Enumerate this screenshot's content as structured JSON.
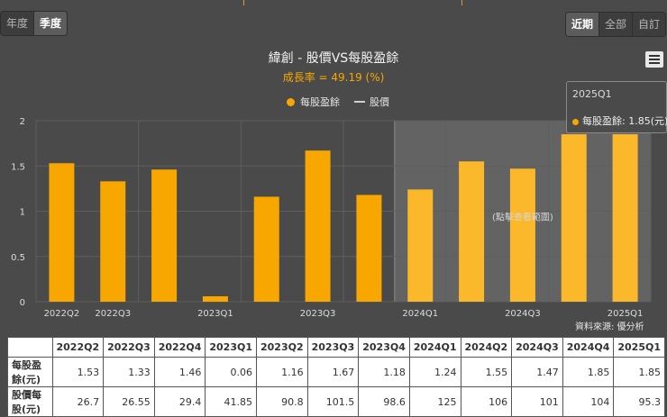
{
  "period_toggle": {
    "annual": "年度",
    "quarterly": "季度",
    "active": "quarterly"
  },
  "range_toggle": {
    "recent": "近期",
    "all": "全部",
    "custom": "自訂",
    "active": "recent"
  },
  "menu": {
    "icon": "hamburger-menu-icon"
  },
  "chart_data": {
    "type": "bar",
    "title": "緯創 - 股價VS每股盈餘",
    "subtitle": "成長率 = 49.19 (%)",
    "categories": [
      "2022Q2",
      "2022Q3",
      "2022Q4",
      "2023Q1",
      "2023Q2",
      "2023Q3",
      "2023Q4",
      "2024Q1",
      "2024Q2",
      "2024Q3",
      "2024Q4",
      "2025Q1"
    ],
    "x_tick_labels": [
      "2022Q2",
      "2022Q3",
      "",
      "2023Q1",
      "",
      "2023Q3",
      "",
      "2024Q1",
      "",
      "2024Q3",
      "",
      "2025Q1"
    ],
    "series": [
      {
        "name": "每股盈餘",
        "type": "bar",
        "color": "#f7a700",
        "values": [
          1.53,
          1.33,
          1.46,
          0.06,
          1.16,
          1.67,
          1.18,
          1.24,
          1.55,
          1.47,
          1.85,
          1.85
        ]
      },
      {
        "name": "股價",
        "type": "line",
        "color": "#cfcfcf",
        "values": [
          26.7,
          26.55,
          29.4,
          41.85,
          90.8,
          101.5,
          98.6,
          125,
          106,
          101,
          104,
          95.3
        ]
      }
    ],
    "y_ticks": [
      "0",
      "0.5",
      "1",
      "1.5",
      "2"
    ],
    "ylim": [
      0,
      2
    ],
    "grid": true,
    "legend": "top-center",
    "highlight_band": {
      "from": "2024Q1",
      "to": "2025Q1",
      "label": "(點擊查看範圍)"
    },
    "tooltip": {
      "category": "2025Q1",
      "series": "每股盈餘",
      "value_text": "1.85(元)"
    }
  },
  "source": "資料來源: 優分析",
  "table": {
    "headers": [
      "",
      "2022Q2",
      "2022Q3",
      "2022Q4",
      "2023Q1",
      "2023Q2",
      "2023Q3",
      "2023Q4",
      "2024Q1",
      "2024Q2",
      "2024Q3",
      "2024Q4",
      "2025Q1"
    ],
    "rows": [
      {
        "label": "每股盈餘(元)",
        "cells": [
          "1.53",
          "1.33",
          "1.46",
          "0.06",
          "1.16",
          "1.67",
          "1.18",
          "1.24",
          "1.55",
          "1.47",
          "1.85",
          "1.85"
        ]
      },
      {
        "label": "股價每股(元)",
        "cells": [
          "26.7",
          "26.55",
          "29.4",
          "41.85",
          "90.8",
          "101.5",
          "98.6",
          "125",
          "106",
          "101",
          "104",
          "95.3"
        ]
      }
    ]
  }
}
